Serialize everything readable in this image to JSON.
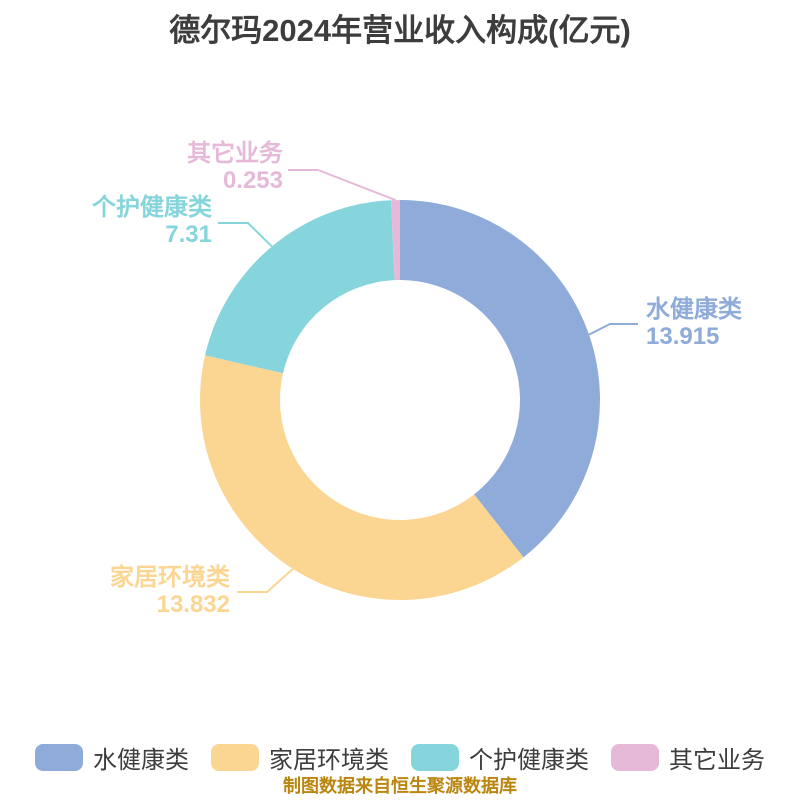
{
  "footer_note": "制图数据来自恒生聚源数据库",
  "colors": {
    "background": "#ffffff",
    "title_text": "#3d3d3d",
    "legend_text": "#3d3d3d",
    "footer_text": "#ba860f"
  },
  "chart_data": {
    "type": "pie",
    "subtype": "donut",
    "title": "德尔玛2024年营业收入构成(亿元)",
    "unit": "亿元",
    "start_angle": "top",
    "direction": "clockwise",
    "legend_position": "bottom",
    "slices": [
      {
        "label": "水健康类",
        "value": 13.915,
        "color": "#8eabd9"
      },
      {
        "label": "家居环境类",
        "value": 13.832,
        "color": "#fbd693"
      },
      {
        "label": "个护健康类",
        "value": 7.31,
        "color": "#87d5dc"
      },
      {
        "label": "其它业务",
        "value": 0.253,
        "color": "#e7b9d9"
      }
    ]
  }
}
